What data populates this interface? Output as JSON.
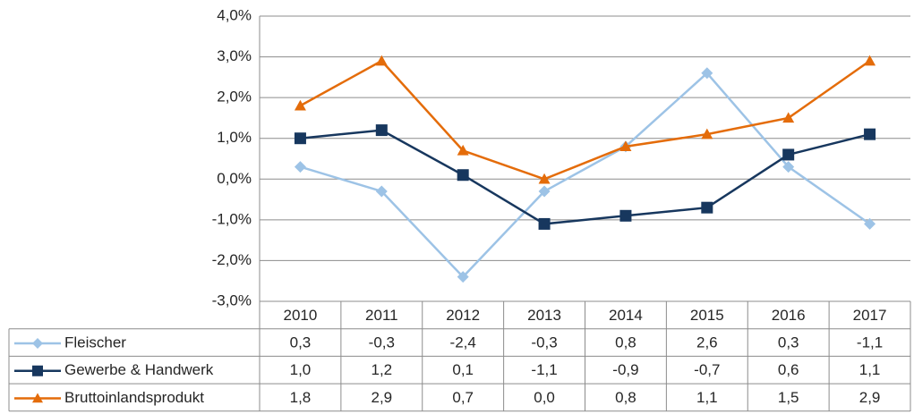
{
  "chart_data": {
    "type": "line",
    "categories": [
      "2010",
      "2011",
      "2012",
      "2013",
      "2014",
      "2015",
      "2016",
      "2017"
    ],
    "series": [
      {
        "name": "Fleischer",
        "color": "#9dc3e6",
        "marker": "diamond",
        "values": [
          0.3,
          -0.3,
          -2.4,
          -0.3,
          0.8,
          2.6,
          0.3,
          -1.1
        ],
        "value_labels": [
          "0,3",
          "-0,3",
          "-2,4",
          "-0,3",
          "0,8",
          "2,6",
          "0,3",
          "-1,1"
        ]
      },
      {
        "name": "Gewerbe & Handwerk",
        "color": "#17375e",
        "marker": "square",
        "values": [
          1.0,
          1.2,
          0.1,
          -1.1,
          -0.9,
          -0.7,
          0.6,
          1.1
        ],
        "value_labels": [
          "1,0",
          "1,2",
          "0,1",
          "-1,1",
          "-0,9",
          "-0,7",
          "0,6",
          "1,1"
        ]
      },
      {
        "name": "Bruttoinlandsprodukt",
        "color": "#e46c0a",
        "marker": "triangle",
        "values": [
          1.8,
          2.9,
          0.7,
          0.0,
          0.8,
          1.1,
          1.5,
          2.9
        ],
        "value_labels": [
          "1,8",
          "2,9",
          "0,7",
          "0,0",
          "0,8",
          "1,1",
          "1,5",
          "2,9"
        ]
      }
    ],
    "ylim": [
      -3,
      4
    ],
    "yticks": [
      {
        "value": -3,
        "label": "-3,0%"
      },
      {
        "value": -2,
        "label": "-2,0%"
      },
      {
        "value": -1,
        "label": "-1,0%"
      },
      {
        "value": 0,
        "label": "0,0%"
      },
      {
        "value": 1,
        "label": "1,0%"
      },
      {
        "value": 2,
        "label": "2,0%"
      },
      {
        "value": 3,
        "label": "3,0%"
      },
      {
        "value": 4,
        "label": "4,0%"
      }
    ],
    "grid": true
  }
}
